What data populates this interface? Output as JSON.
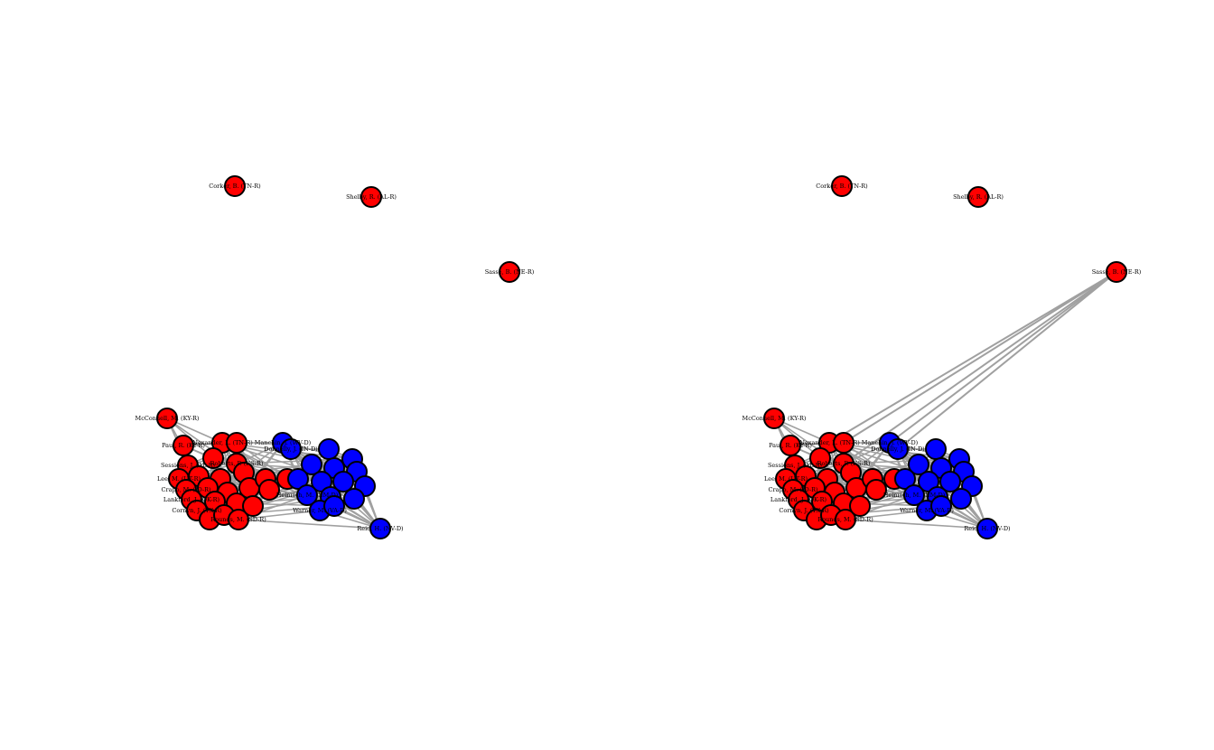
{
  "colors": {
    "republican": "#ff0000",
    "democrat": "#0000ff",
    "edge": "#a0a0a0",
    "outline": "#000000",
    "background": "#ffffff"
  },
  "panels": [
    {
      "name": "left",
      "outlier_edges": false
    },
    {
      "name": "right",
      "outlier_edges": true
    }
  ],
  "labels": {
    "corker": "Corker, B. (TN-R)",
    "shelby": "Shelby, R. (AL-R)",
    "sasse": "Sasse, B. (NE-R)",
    "mcconnell": "McConnell, M. (KY-R)",
    "paul": "Paul, R. (KY-R)",
    "alexander": "Alexander, L. (TN-R)",
    "manchin": "Manchin, J. (WV-D)",
    "roberts": "Roberts, P. (KS-R)",
    "sessions": "Sessions, J. (AL-R)",
    "lee": "Lee, M. (UT-R)",
    "crapo": "Crapo, M. (ID-R)",
    "lankford": "Lankford, J. (OK-R)",
    "cornyn": "Cornyn, J. (TX-R)",
    "heinrich": "Heinrich, M. (NM-D)",
    "warner": "Warner, M. (VA-D)",
    "rounds": "Rounds, M. (SD-R)",
    "reid": "Reid, H. (NV-D)",
    "donnelly": "Donnelly, J. (IN-D)"
  }
}
